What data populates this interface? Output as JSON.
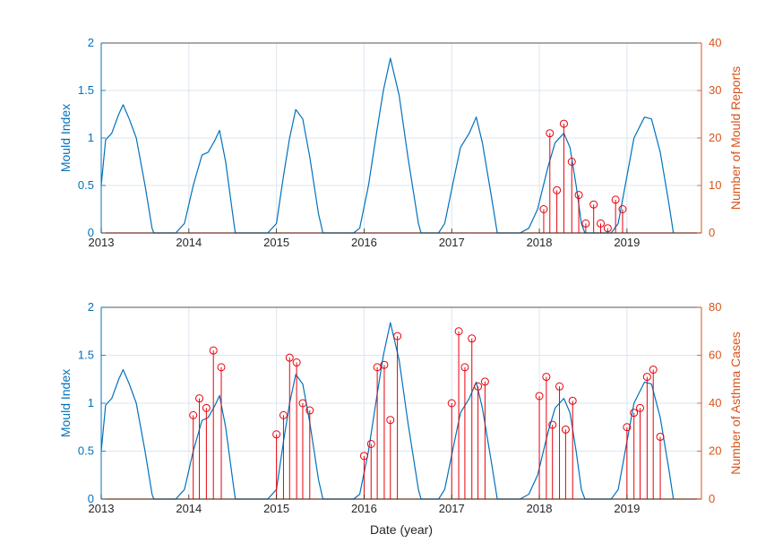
{
  "colors": {
    "left_axis": "#0072BD",
    "right_axis": "#D95319",
    "stems": "#E8000B",
    "grid": "#DCE6EE",
    "frame": "#262626"
  },
  "chart_data": [
    {
      "type": "line",
      "xlabel": "",
      "ylabel": "Mould Index",
      "y2label": "Number of Mould Reports",
      "xlim": [
        2013,
        2019.85
      ],
      "ylim": [
        0,
        2
      ],
      "y2lim": [
        0,
        40
      ],
      "xticks": [
        "2013",
        "2014",
        "2015",
        "2016",
        "2017",
        "2018",
        "2019"
      ],
      "yticks": [
        "0",
        "0.5",
        "1",
        "1.5",
        "2"
      ],
      "y2ticks": [
        "0",
        "10",
        "20",
        "30",
        "40"
      ],
      "grid": true,
      "series": [
        {
          "values": [
            [
              2013.0,
              0.5
            ],
            [
              2013.05,
              0.98
            ],
            [
              2013.12,
              1.05
            ],
            [
              2013.2,
              1.25
            ],
            [
              2013.25,
              1.35
            ],
            [
              2013.32,
              1.2
            ],
            [
              2013.4,
              1.0
            ],
            [
              2013.5,
              0.5
            ],
            [
              2013.58,
              0.05
            ],
            [
              2013.6,
              0.0
            ],
            [
              2013.85,
              0.0
            ],
            [
              2013.95,
              0.1
            ],
            [
              2014.05,
              0.5
            ],
            [
              2014.15,
              0.82
            ],
            [
              2014.22,
              0.85
            ],
            [
              2014.3,
              0.98
            ],
            [
              2014.35,
              1.08
            ],
            [
              2014.42,
              0.75
            ],
            [
              2014.5,
              0.2
            ],
            [
              2014.53,
              0.0
            ],
            [
              2014.9,
              0.0
            ],
            [
              2015.0,
              0.1
            ],
            [
              2015.08,
              0.6
            ],
            [
              2015.15,
              1.0
            ],
            [
              2015.22,
              1.3
            ],
            [
              2015.3,
              1.2
            ],
            [
              2015.38,
              0.8
            ],
            [
              2015.48,
              0.2
            ],
            [
              2015.53,
              0.0
            ],
            [
              2015.88,
              0.0
            ],
            [
              2015.95,
              0.05
            ],
            [
              2016.05,
              0.5
            ],
            [
              2016.15,
              1.1
            ],
            [
              2016.22,
              1.5
            ],
            [
              2016.3,
              1.84
            ],
            [
              2016.4,
              1.45
            ],
            [
              2016.5,
              0.8
            ],
            [
              2016.62,
              0.1
            ],
            [
              2016.65,
              0.0
            ],
            [
              2016.85,
              0.0
            ],
            [
              2016.92,
              0.1
            ],
            [
              2017.02,
              0.55
            ],
            [
              2017.1,
              0.9
            ],
            [
              2017.2,
              1.05
            ],
            [
              2017.28,
              1.22
            ],
            [
              2017.35,
              0.95
            ],
            [
              2017.45,
              0.4
            ],
            [
              2017.52,
              0.0
            ],
            [
              2017.78,
              0.0
            ],
            [
              2017.88,
              0.05
            ],
            [
              2017.98,
              0.25
            ],
            [
              2018.1,
              0.7
            ],
            [
              2018.18,
              0.95
            ],
            [
              2018.28,
              1.05
            ],
            [
              2018.35,
              0.9
            ],
            [
              2018.42,
              0.5
            ],
            [
              2018.48,
              0.1
            ],
            [
              2018.52,
              0.0
            ],
            [
              2018.82,
              0.0
            ],
            [
              2018.9,
              0.1
            ],
            [
              2018.98,
              0.5
            ],
            [
              2019.08,
              1.0
            ],
            [
              2019.2,
              1.22
            ],
            [
              2019.28,
              1.2
            ],
            [
              2019.38,
              0.85
            ],
            [
              2019.48,
              0.3
            ],
            [
              2019.53,
              0.0
            ]
          ]
        }
      ],
      "stems": [
        [
          2018.05,
          5
        ],
        [
          2018.12,
          21
        ],
        [
          2018.2,
          9
        ],
        [
          2018.28,
          23
        ],
        [
          2018.37,
          15
        ],
        [
          2018.45,
          8
        ],
        [
          2018.53,
          2
        ],
        [
          2018.62,
          6
        ],
        [
          2018.7,
          2
        ],
        [
          2018.78,
          1
        ],
        [
          2018.87,
          7
        ],
        [
          2018.95,
          5
        ]
      ]
    },
    {
      "type": "line",
      "xlabel": "Date (year)",
      "ylabel": "Mould Index",
      "y2label": "Number of Asthma Cases",
      "xlim": [
        2013,
        2019.85
      ],
      "ylim": [
        0,
        2
      ],
      "y2lim": [
        0,
        80
      ],
      "xticks": [
        "2013",
        "2014",
        "2015",
        "2016",
        "2017",
        "2018",
        "2019"
      ],
      "yticks": [
        "0",
        "0.5",
        "1",
        "1.5",
        "2"
      ],
      "y2ticks": [
        "0",
        "20",
        "40",
        "60",
        "80"
      ],
      "grid": true,
      "series": [
        {
          "values": [
            [
              2013.0,
              0.5
            ],
            [
              2013.05,
              0.98
            ],
            [
              2013.12,
              1.05
            ],
            [
              2013.2,
              1.25
            ],
            [
              2013.25,
              1.35
            ],
            [
              2013.32,
              1.2
            ],
            [
              2013.4,
              1.0
            ],
            [
              2013.5,
              0.5
            ],
            [
              2013.58,
              0.05
            ],
            [
              2013.6,
              0.0
            ],
            [
              2013.85,
              0.0
            ],
            [
              2013.95,
              0.1
            ],
            [
              2014.05,
              0.5
            ],
            [
              2014.15,
              0.82
            ],
            [
              2014.22,
              0.85
            ],
            [
              2014.3,
              0.98
            ],
            [
              2014.35,
              1.08
            ],
            [
              2014.42,
              0.75
            ],
            [
              2014.5,
              0.2
            ],
            [
              2014.53,
              0.0
            ],
            [
              2014.9,
              0.0
            ],
            [
              2015.0,
              0.1
            ],
            [
              2015.08,
              0.6
            ],
            [
              2015.15,
              1.0
            ],
            [
              2015.22,
              1.3
            ],
            [
              2015.3,
              1.2
            ],
            [
              2015.38,
              0.8
            ],
            [
              2015.48,
              0.2
            ],
            [
              2015.53,
              0.0
            ],
            [
              2015.88,
              0.0
            ],
            [
              2015.95,
              0.05
            ],
            [
              2016.05,
              0.5
            ],
            [
              2016.15,
              1.1
            ],
            [
              2016.22,
              1.5
            ],
            [
              2016.3,
              1.84
            ],
            [
              2016.4,
              1.45
            ],
            [
              2016.5,
              0.8
            ],
            [
              2016.62,
              0.1
            ],
            [
              2016.65,
              0.0
            ],
            [
              2016.85,
              0.0
            ],
            [
              2016.92,
              0.1
            ],
            [
              2017.02,
              0.55
            ],
            [
              2017.1,
              0.9
            ],
            [
              2017.2,
              1.05
            ],
            [
              2017.28,
              1.22
            ],
            [
              2017.35,
              0.95
            ],
            [
              2017.45,
              0.4
            ],
            [
              2017.52,
              0.0
            ],
            [
              2017.78,
              0.0
            ],
            [
              2017.88,
              0.05
            ],
            [
              2017.98,
              0.25
            ],
            [
              2018.1,
              0.7
            ],
            [
              2018.18,
              0.95
            ],
            [
              2018.28,
              1.05
            ],
            [
              2018.35,
              0.9
            ],
            [
              2018.42,
              0.5
            ],
            [
              2018.48,
              0.1
            ],
            [
              2018.52,
              0.0
            ],
            [
              2018.82,
              0.0
            ],
            [
              2018.9,
              0.1
            ],
            [
              2018.98,
              0.5
            ],
            [
              2019.08,
              1.0
            ],
            [
              2019.2,
              1.22
            ],
            [
              2019.28,
              1.2
            ],
            [
              2019.38,
              0.85
            ],
            [
              2019.48,
              0.3
            ],
            [
              2019.53,
              0.0
            ]
          ]
        }
      ],
      "stems": [
        [
          2014.05,
          35
        ],
        [
          2014.12,
          42
        ],
        [
          2014.2,
          38
        ],
        [
          2014.28,
          62
        ],
        [
          2014.37,
          55
        ],
        [
          2015.0,
          27
        ],
        [
          2015.08,
          35
        ],
        [
          2015.15,
          59
        ],
        [
          2015.23,
          57
        ],
        [
          2015.3,
          40
        ],
        [
          2015.38,
          37
        ],
        [
          2016.0,
          18
        ],
        [
          2016.08,
          23
        ],
        [
          2016.15,
          55
        ],
        [
          2016.23,
          56
        ],
        [
          2016.3,
          33
        ],
        [
          2016.38,
          68
        ],
        [
          2017.0,
          40
        ],
        [
          2017.08,
          70
        ],
        [
          2017.15,
          55
        ],
        [
          2017.23,
          67
        ],
        [
          2017.3,
          47
        ],
        [
          2017.38,
          49
        ],
        [
          2018.0,
          43
        ],
        [
          2018.08,
          51
        ],
        [
          2018.15,
          31
        ],
        [
          2018.23,
          47
        ],
        [
          2018.3,
          29
        ],
        [
          2018.38,
          41
        ],
        [
          2019.0,
          30
        ],
        [
          2019.08,
          36
        ],
        [
          2019.15,
          38
        ],
        [
          2019.23,
          51
        ],
        [
          2019.3,
          54
        ],
        [
          2019.38,
          26
        ]
      ]
    }
  ]
}
